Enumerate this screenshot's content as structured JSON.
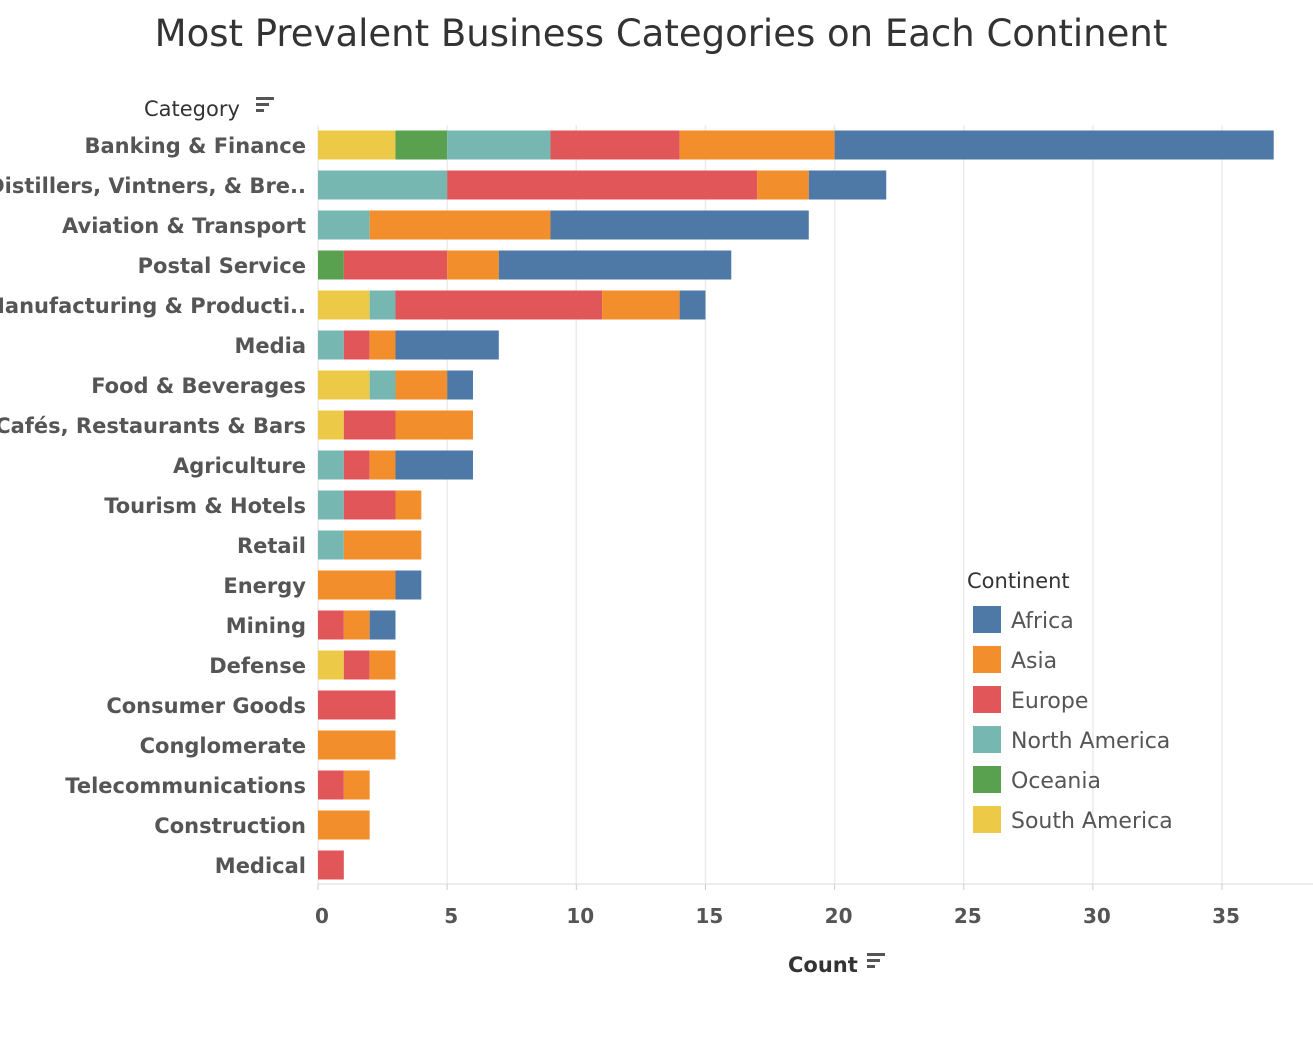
{
  "chart_data": {
    "type": "bar",
    "orientation": "horizontal",
    "stacked": true,
    "title": "Most Prevalent Business Categories on Each Continent",
    "xlabel": "Count",
    "ylabel": "Category",
    "xlim": [
      0,
      38
    ],
    "xticks": [
      0,
      5,
      10,
      15,
      20,
      25,
      30,
      35
    ],
    "grid": true,
    "legend_title": "Continent",
    "legend_position": "right",
    "categories": [
      "Banking & Finance",
      "Distillers, Vintners, & Bre..",
      "Aviation & Transport",
      "Postal Service",
      "Manufacturing & Producti..",
      "Media",
      "Food & Beverages",
      "Cafés, Restaurants & Bars",
      "Agriculture",
      "Tourism & Hotels",
      "Retail",
      "Energy",
      "Mining",
      "Defense",
      "Consumer Goods",
      "Conglomerate",
      "Telecommunications",
      "Construction",
      "Medical"
    ],
    "stack_order": [
      "South America",
      "Oceania",
      "North America",
      "Europe",
      "Asia",
      "Africa"
    ],
    "series": [
      {
        "name": "Africa",
        "color": "#4e79a7",
        "values": [
          17,
          3,
          10,
          9,
          1,
          4,
          1,
          0,
          3,
          0,
          0,
          1,
          1,
          0,
          0,
          0,
          0,
          0,
          0
        ]
      },
      {
        "name": "Asia",
        "color": "#f28e2b",
        "values": [
          6,
          2,
          7,
          2,
          3,
          1,
          2,
          3,
          1,
          1,
          3,
          3,
          1,
          1,
          0,
          3,
          1,
          2,
          0
        ]
      },
      {
        "name": "Europe",
        "color": "#e15759",
        "values": [
          5,
          12,
          0,
          4,
          8,
          1,
          0,
          2,
          1,
          2,
          0,
          0,
          1,
          1,
          3,
          0,
          1,
          0,
          1
        ]
      },
      {
        "name": "North America",
        "color": "#76b7b2",
        "values": [
          4,
          5,
          2,
          0,
          1,
          1,
          1,
          0,
          1,
          1,
          1,
          0,
          0,
          0,
          0,
          0,
          0,
          0,
          0
        ]
      },
      {
        "name": "Oceania",
        "color": "#59a14f",
        "values": [
          2,
          0,
          0,
          1,
          0,
          0,
          0,
          0,
          0,
          0,
          0,
          0,
          0,
          0,
          0,
          0,
          0,
          0,
          0
        ]
      },
      {
        "name": "South America",
        "color": "#edc948",
        "values": [
          3,
          0,
          0,
          0,
          2,
          0,
          2,
          1,
          0,
          0,
          0,
          0,
          0,
          1,
          0,
          0,
          0,
          0,
          0
        ]
      }
    ]
  }
}
